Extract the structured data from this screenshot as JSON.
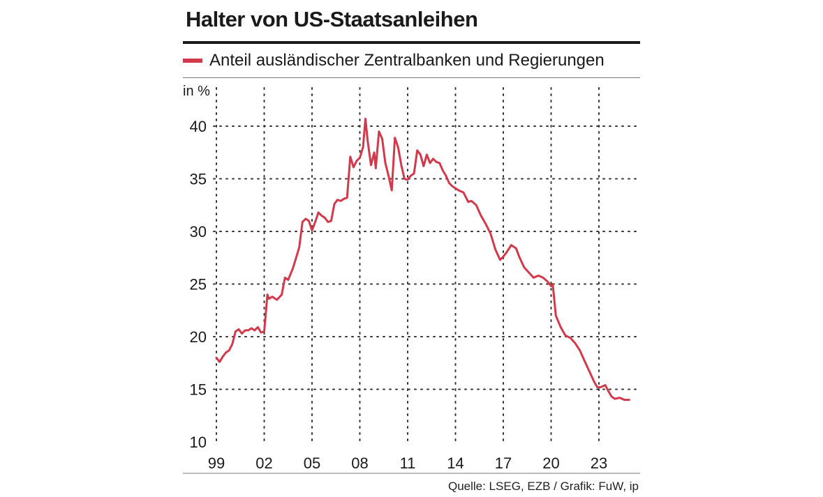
{
  "title": "Halter von US-Staatsanleihen",
  "source": "Quelle: LSEG, EZB / Grafik: FuW, ip",
  "chart_data": {
    "type": "line",
    "title": "Halter von US-Staatsanleihen",
    "ylabel": "in %",
    "ylim": [
      10,
      42
    ],
    "xlim": [
      1999,
      2025.5
    ],
    "yticks": [
      10,
      15,
      20,
      25,
      30,
      35,
      40
    ],
    "xticks": [
      1999,
      2002,
      2005,
      2008,
      2011,
      2014,
      2017,
      2020,
      2023
    ],
    "xtick_labels": [
      "99",
      "02",
      "05",
      "08",
      "11",
      "14",
      "17",
      "20",
      "23"
    ],
    "grid": true,
    "legend_position": "top-left",
    "series": [
      {
        "name": "Anteil ausländischer Zentralbanken und Regierungen",
        "color": "#d2394a",
        "x": [
          1999.0,
          1999.2,
          1999.4,
          1999.6,
          1999.8,
          2000.0,
          2000.2,
          2000.4,
          2000.6,
          2000.8,
          2001.0,
          2001.2,
          2001.4,
          2001.6,
          2001.8,
          2002.0,
          2002.2,
          2002.3,
          2002.5,
          2002.8,
          2003.1,
          2003.3,
          2003.5,
          2003.8,
          2004.0,
          2004.2,
          2004.4,
          2004.6,
          2004.8,
          2005.0,
          2005.2,
          2005.4,
          2005.6,
          2005.8,
          2006.0,
          2006.2,
          2006.4,
          2006.6,
          2006.8,
          2007.0,
          2007.2,
          2007.4,
          2007.6,
          2007.8,
          2008.0,
          2008.2,
          2008.35,
          2008.5,
          2008.7,
          2008.9,
          2009.0,
          2009.2,
          2009.4,
          2009.6,
          2009.8,
          2010.0,
          2010.2,
          2010.4,
          2010.6,
          2010.8,
          2011.0,
          2011.2,
          2011.4,
          2011.6,
          2011.8,
          2012.0,
          2012.2,
          2012.4,
          2012.6,
          2012.8,
          2013.0,
          2013.2,
          2013.4,
          2013.6,
          2013.8,
          2014.0,
          2014.2,
          2014.5,
          2014.8,
          2015.0,
          2015.3,
          2015.6,
          2015.9,
          2016.2,
          2016.5,
          2016.8,
          2017.0,
          2017.2,
          2017.5,
          2017.8,
          2018.0,
          2018.3,
          2018.6,
          2018.9,
          2019.2,
          2019.5,
          2019.8,
          2020.0,
          2020.1,
          2020.3,
          2020.6,
          2020.9,
          2021.2,
          2021.5,
          2021.8,
          2022.1,
          2022.4,
          2022.7,
          2022.9,
          2023.1,
          2023.4,
          2023.6,
          2023.8,
          2024.0,
          2024.3,
          2024.6,
          2024.9
        ],
        "y": [
          18.0,
          17.6,
          18.1,
          18.5,
          18.7,
          19.3,
          20.5,
          20.7,
          20.3,
          20.6,
          20.6,
          20.8,
          20.6,
          20.9,
          20.4,
          20.5,
          24.0,
          23.6,
          23.8,
          23.5,
          24.0,
          25.6,
          25.4,
          26.5,
          27.5,
          28.5,
          30.9,
          31.2,
          31.0,
          30.1,
          30.9,
          31.8,
          31.5,
          31.3,
          30.9,
          31.0,
          32.6,
          33.0,
          32.9,
          33.1,
          33.2,
          37.1,
          36.1,
          36.7,
          37.0,
          38.0,
          40.7,
          38.5,
          36.3,
          37.5,
          36.0,
          39.5,
          38.8,
          36.5,
          35.3,
          33.9,
          38.9,
          38.0,
          36.3,
          35.0,
          34.9,
          35.3,
          35.5,
          37.7,
          37.3,
          36.2,
          37.3,
          36.5,
          36.9,
          36.6,
          36.5,
          35.8,
          35.3,
          34.6,
          34.3,
          34.1,
          33.9,
          33.7,
          32.8,
          32.9,
          32.5,
          31.5,
          30.7,
          29.8,
          28.3,
          27.3,
          27.6,
          28.0,
          28.7,
          28.4,
          27.6,
          26.6,
          26.1,
          25.6,
          25.8,
          25.6,
          25.2,
          24.8,
          25.0,
          22.0,
          20.9,
          20.1,
          19.9,
          19.4,
          18.7,
          17.7,
          16.7,
          15.7,
          15.2,
          15.2,
          15.4,
          14.8,
          14.3,
          14.1,
          14.2,
          14.0,
          14.0
        ]
      }
    ]
  }
}
